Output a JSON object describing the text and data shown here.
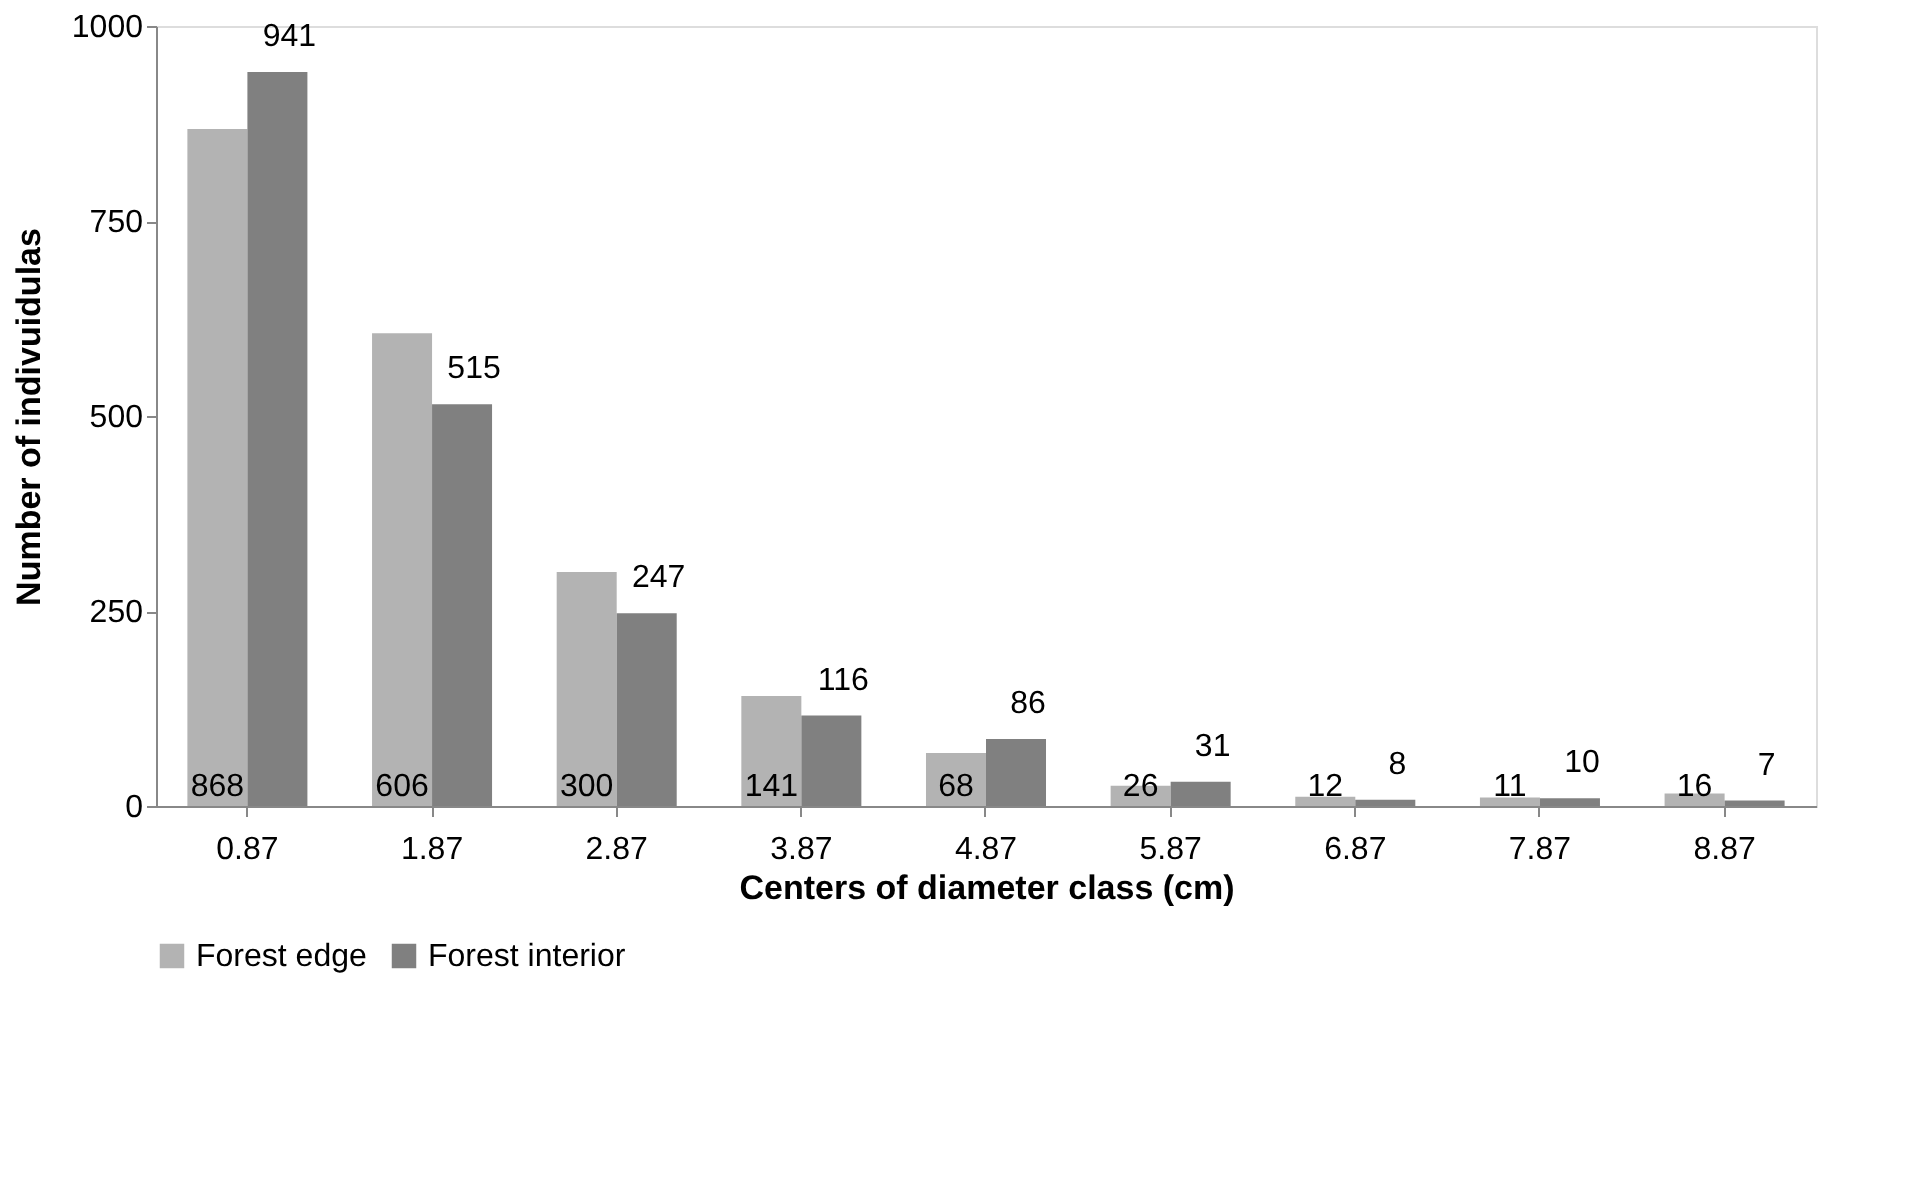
{
  "chart_data": {
    "type": "bar",
    "xlabel": "Centers of diameter class (cm)",
    "ylabel": "Number of indivuidulas",
    "categories": [
      "0.87",
      "1.87",
      "2.87",
      "3.87",
      "4.87",
      "5.87",
      "6.87",
      "7.87",
      "8.87"
    ],
    "series": [
      {
        "name": "Forest edge",
        "color": "#b3b3b3",
        "values": [
          868,
          606,
          300,
          141,
          68,
          26,
          12,
          11,
          16
        ]
      },
      {
        "name": "Forest interior",
        "color": "#808080",
        "values": [
          941,
          515,
          247,
          116,
          86,
          31,
          8,
          10,
          7
        ]
      }
    ],
    "ylim": [
      0,
      1000
    ],
    "yticks": [
      0,
      250,
      500,
      750,
      1000
    ],
    "grid": false,
    "legend": "bottom",
    "data_labels": true
  }
}
